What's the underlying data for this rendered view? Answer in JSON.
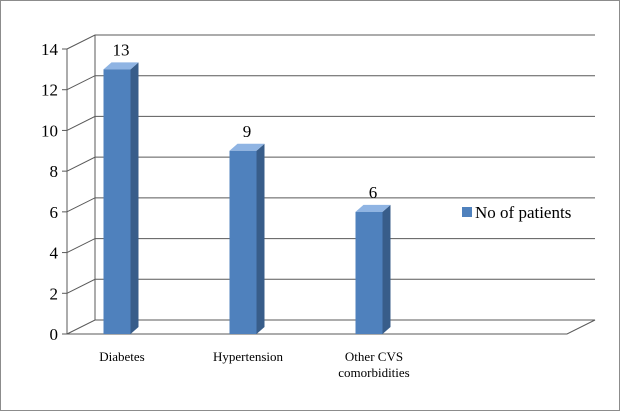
{
  "chart_data": {
    "type": "bar",
    "categories": [
      "Diabetes",
      "Hypertension",
      "Other CVS comorbidities"
    ],
    "category_label_lines": [
      [
        "Diabetes"
      ],
      [
        "Hypertension"
      ],
      [
        "Other CVS",
        "comorbidities"
      ]
    ],
    "series": [
      {
        "name": "No of patients",
        "values": [
          13,
          9,
          6
        ]
      }
    ],
    "data_labels": [
      "13",
      "9",
      "6"
    ],
    "title": "",
    "xlabel": "",
    "ylabel": "",
    "ylim": [
      0,
      14
    ],
    "yticks": [
      "0",
      "2",
      "4",
      "6",
      "8",
      "10",
      "12",
      "14"
    ],
    "grid": true,
    "legend_position": "right",
    "three_d": true,
    "colors": {
      "bar_front": "#4f81bd",
      "bar_side": "#385d8a",
      "bar_top": "#8fb4e3",
      "grid": "#595959",
      "text": "#000000"
    }
  }
}
